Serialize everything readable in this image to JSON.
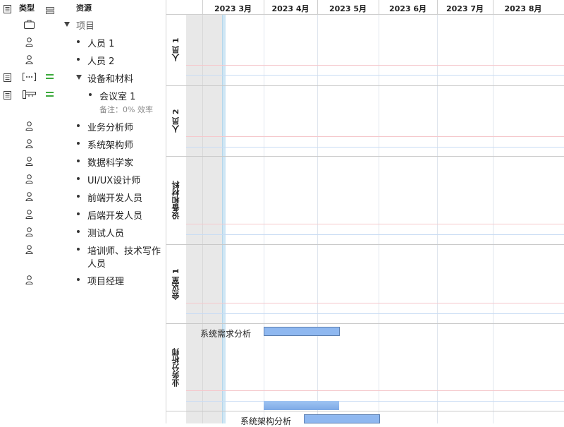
{
  "header": {
    "type_label": "类型",
    "resource_label": "资源"
  },
  "tree": {
    "project": "项目",
    "person1": "人员 1",
    "person2": "人员 2",
    "equipment": "设备和材料",
    "meeting_room": "会议室 1",
    "meeting_room_note": "备注：0% 效率",
    "business_analyst": "业务分析师",
    "system_architect": "系统架构师",
    "data_scientist": "数据科学家",
    "uiux_designer": "UI/UX设计师",
    "frontend_dev": "前端开发人员",
    "backend_dev": "后端开发人员",
    "tester": "测试人员",
    "trainer_line1": "培训师、技术写作",
    "trainer_line2": "人员",
    "project_manager": "项目经理"
  },
  "timeline": {
    "months": [
      "2023 3月",
      "2023 4月",
      "2023 5月",
      "2023 6月",
      "2023 7月",
      "2023 8月"
    ]
  },
  "lanes": {
    "person1": "人员 1",
    "person2": "人员 2",
    "equipment": "设备和材料",
    "meeting_room": "会议室 1",
    "business_analyst": "业务分析师"
  },
  "tasks": {
    "requirements_analysis": "系统需求分析",
    "architecture_analysis": "系统架构分析"
  },
  "colors": {
    "task_bar": "#8fb8f0",
    "resource_assigned": "#3caa3c",
    "today_line": "#cfe6f4"
  }
}
